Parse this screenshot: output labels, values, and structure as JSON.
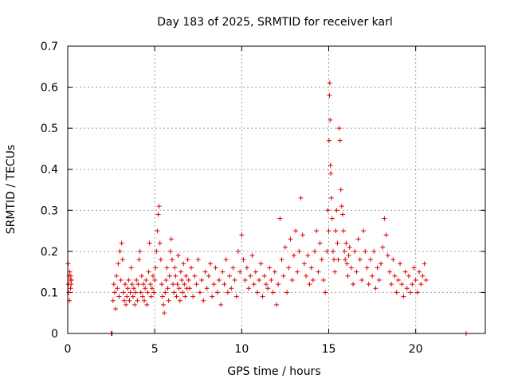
{
  "chart_data": {
    "type": "scatter",
    "title": "Day 183 of 2025, SRMTID for receiver karl",
    "xlabel": "GPS time / hours",
    "ylabel": "SRMTID / TECUs",
    "xlim": [
      0,
      24
    ],
    "ylim": [
      0,
      0.7
    ],
    "xticks": [
      0,
      5,
      10,
      15,
      20
    ],
    "yticks": [
      0,
      0.1,
      0.2,
      0.3,
      0.4,
      0.5,
      0.6,
      0.7
    ],
    "xtick_labels": [
      "0",
      "5",
      "10",
      "15",
      "20"
    ],
    "ytick_labels": [
      "0",
      "0.1",
      "0.2",
      "0.3",
      "0.4",
      "0.5",
      "0.6",
      "0.7"
    ],
    "grid": true,
    "marker": "+",
    "color": "#e00000",
    "series": [
      {
        "name": "SRMTID",
        "x": [
          0.02,
          0.04,
          0.06,
          0.08,
          0.1,
          0.12,
          0.14,
          0.16,
          0.18,
          0.2,
          0.22,
          2.5,
          2.55,
          2.6,
          2.65,
          2.7,
          2.75,
          2.8,
          2.85,
          2.9,
          2.95,
          3.0,
          3.05,
          3.1,
          3.15,
          3.2,
          3.25,
          3.3,
          3.35,
          3.4,
          3.45,
          3.5,
          3.55,
          3.6,
          3.65,
          3.7,
          3.75,
          3.8,
          3.85,
          3.9,
          3.95,
          4.0,
          4.05,
          4.1,
          4.15,
          4.2,
          4.25,
          4.3,
          4.35,
          4.4,
          4.45,
          4.5,
          4.55,
          4.6,
          4.65,
          4.7,
          4.75,
          4.8,
          4.85,
          4.9,
          4.95,
          5.0,
          5.05,
          5.1,
          5.15,
          5.2,
          5.25,
          5.3,
          5.35,
          5.4,
          5.45,
          5.5,
          5.55,
          5.6,
          5.65,
          5.7,
          5.75,
          5.8,
          5.85,
          5.9,
          5.95,
          6.0,
          6.05,
          6.1,
          6.15,
          6.2,
          6.25,
          6.3,
          6.35,
          6.4,
          6.45,
          6.5,
          6.55,
          6.6,
          6.65,
          6.7,
          6.75,
          6.8,
          6.85,
          6.9,
          6.95,
          7.0,
          7.1,
          7.2,
          7.3,
          7.4,
          7.5,
          7.6,
          7.7,
          7.8,
          7.9,
          8.0,
          8.1,
          8.2,
          8.3,
          8.4,
          8.5,
          8.6,
          8.7,
          8.8,
          8.9,
          9.0,
          9.1,
          9.2,
          9.3,
          9.4,
          9.5,
          9.6,
          9.7,
          9.8,
          9.9,
          10.0,
          10.1,
          10.2,
          10.3,
          10.4,
          10.5,
          10.6,
          10.7,
          10.8,
          10.9,
          11.0,
          11.1,
          11.2,
          11.3,
          11.4,
          11.5,
          11.6,
          11.7,
          11.8,
          11.9,
          12.0,
          12.1,
          12.2,
          12.3,
          12.4,
          12.5,
          12.6,
          12.7,
          12.8,
          12.9,
          13.0,
          13.1,
          13.2,
          13.3,
          13.4,
          13.5,
          13.6,
          13.7,
          13.8,
          13.9,
          14.0,
          14.1,
          14.2,
          14.3,
          14.4,
          14.5,
          14.6,
          14.7,
          14.8,
          14.9,
          14.95,
          15.0,
          15.02,
          15.04,
          15.06,
          15.08,
          15.1,
          15.12,
          15.15,
          15.2,
          15.25,
          15.3,
          15.35,
          15.4,
          15.45,
          15.5,
          15.55,
          15.6,
          15.65,
          15.7,
          15.75,
          15.8,
          15.85,
          15.9,
          15.95,
          16.0,
          16.05,
          16.1,
          16.15,
          16.2,
          16.3,
          16.4,
          16.5,
          16.6,
          16.7,
          16.8,
          16.9,
          17.0,
          17.1,
          17.2,
          17.3,
          17.4,
          17.5,
          17.6,
          17.7,
          17.8,
          17.9,
          18.0,
          18.1,
          18.2,
          18.3,
          18.4,
          18.5,
          18.6,
          18.7,
          18.8,
          18.9,
          19.0,
          19.1,
          19.2,
          19.3,
          19.4,
          19.5,
          19.6,
          19.7,
          19.8,
          19.9,
          20.0,
          20.1,
          20.2,
          20.3,
          20.4,
          20.5,
          20.6,
          22.9
        ],
        "y": [
          0.17,
          0.12,
          0.1,
          0.14,
          0.08,
          0.15,
          0.13,
          0.11,
          0.14,
          0.12,
          0.13,
          0.0,
          0.0,
          0.08,
          0.12,
          0.1,
          0.06,
          0.14,
          0.11,
          0.17,
          0.09,
          0.2,
          0.13,
          0.22,
          0.18,
          0.1,
          0.08,
          0.12,
          0.07,
          0.09,
          0.11,
          0.13,
          0.08,
          0.1,
          0.16,
          0.12,
          0.09,
          0.11,
          0.07,
          0.1,
          0.13,
          0.08,
          0.12,
          0.18,
          0.2,
          0.1,
          0.14,
          0.09,
          0.12,
          0.08,
          0.11,
          0.13,
          0.07,
          0.1,
          0.15,
          0.22,
          0.12,
          0.09,
          0.11,
          0.14,
          0.1,
          0.13,
          0.16,
          0.2,
          0.25,
          0.29,
          0.31,
          0.22,
          0.18,
          0.12,
          0.09,
          0.07,
          0.05,
          0.1,
          0.13,
          0.16,
          0.11,
          0.08,
          0.14,
          0.2,
          0.23,
          0.18,
          0.12,
          0.1,
          0.16,
          0.14,
          0.09,
          0.12,
          0.19,
          0.11,
          0.08,
          0.15,
          0.13,
          0.1,
          0.17,
          0.12,
          0.09,
          0.14,
          0.11,
          0.18,
          0.13,
          0.11,
          0.16,
          0.09,
          0.14,
          0.12,
          0.18,
          0.1,
          0.13,
          0.08,
          0.15,
          0.11,
          0.14,
          0.17,
          0.09,
          0.12,
          0.16,
          0.1,
          0.13,
          0.07,
          0.15,
          0.12,
          0.18,
          0.1,
          0.14,
          0.11,
          0.16,
          0.13,
          0.09,
          0.2,
          0.15,
          0.24,
          0.18,
          0.13,
          0.16,
          0.11,
          0.14,
          0.19,
          0.12,
          0.15,
          0.1,
          0.13,
          0.17,
          0.09,
          0.14,
          0.12,
          0.11,
          0.16,
          0.13,
          0.1,
          0.15,
          0.07,
          0.12,
          0.28,
          0.18,
          0.14,
          0.21,
          0.1,
          0.16,
          0.23,
          0.13,
          0.19,
          0.25,
          0.15,
          0.2,
          0.33,
          0.24,
          0.17,
          0.14,
          0.19,
          0.12,
          0.16,
          0.13,
          0.2,
          0.25,
          0.15,
          0.22,
          0.18,
          0.13,
          0.1,
          0.2,
          0.3,
          0.25,
          0.47,
          0.58,
          0.61,
          0.52,
          0.41,
          0.39,
          0.33,
          0.28,
          0.2,
          0.18,
          0.15,
          0.25,
          0.3,
          0.22,
          0.18,
          0.5,
          0.47,
          0.35,
          0.31,
          0.29,
          0.25,
          0.2,
          0.18,
          0.22,
          0.17,
          0.14,
          0.19,
          0.21,
          0.16,
          0.12,
          0.2,
          0.15,
          0.23,
          0.18,
          0.13,
          0.25,
          0.2,
          0.16,
          0.12,
          0.18,
          0.14,
          0.2,
          0.11,
          0.16,
          0.13,
          0.17,
          0.21,
          0.28,
          0.24,
          0.19,
          0.15,
          0.12,
          0.18,
          0.14,
          0.1,
          0.13,
          0.17,
          0.12,
          0.09,
          0.15,
          0.11,
          0.14,
          0.1,
          0.12,
          0.16,
          0.13,
          0.1,
          0.15,
          0.12,
          0.14,
          0.17,
          0.13,
          0.0
        ]
      }
    ]
  }
}
